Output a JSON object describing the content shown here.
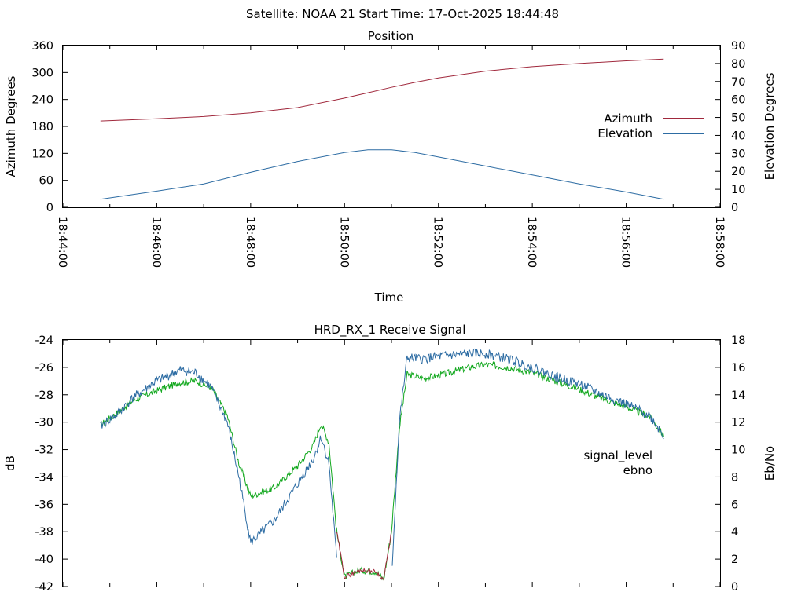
{
  "header": "Satellite: NOAA 21    Start Time: 17-Oct-2025 18:44:48",
  "colors": {
    "azimuth": "#a0283c",
    "elevation": "#2d6ca3",
    "ebno": "#2d6ca3",
    "signal_level": "#000000",
    "signal_level_drawn": "#12a81e",
    "signal_level_low": "#a0283c"
  },
  "chart_data": [
    {
      "type": "line",
      "title": "Position",
      "xlabel": "Time",
      "ylabel_left": "Azimuth Degrees",
      "ylabel_right": "Elevation Degrees",
      "xlim": [
        "18:44:00",
        "18:58:00"
      ],
      "x_ticks": [
        "18:44:00",
        "18:46:00",
        "18:48:00",
        "18:50:00",
        "18:52:00",
        "18:54:00",
        "18:56:00",
        "18:58:00"
      ],
      "ylim_left": [
        0,
        360
      ],
      "y_ticks_left": [
        "0",
        "60",
        "120",
        "180",
        "240",
        "300",
        "360"
      ],
      "ylim_right": [
        0,
        90
      ],
      "y_ticks_right": [
        "0",
        "10",
        "20",
        "30",
        "40",
        "50",
        "60",
        "70",
        "80",
        "90"
      ],
      "legend": "right",
      "grid": false,
      "series": [
        {
          "name": "Azimuth",
          "axis": "left",
          "x": [
            "18:44:48",
            "18:46:00",
            "18:47:00",
            "18:48:00",
            "18:49:00",
            "18:50:00",
            "18:50:30",
            "18:51:00",
            "18:51:30",
            "18:52:00",
            "18:53:00",
            "18:54:00",
            "18:55:00",
            "18:56:00",
            "18:56:48"
          ],
          "values": [
            192,
            197,
            202,
            210,
            222,
            243,
            255,
            267,
            278,
            288,
            303,
            313,
            320,
            326,
            330
          ]
        },
        {
          "name": "Elevation",
          "axis": "right",
          "x": [
            "18:44:48",
            "18:46:00",
            "18:47:00",
            "18:48:00",
            "18:49:00",
            "18:50:00",
            "18:50:30",
            "18:51:00",
            "18:51:30",
            "18:52:00",
            "18:53:00",
            "18:54:00",
            "18:55:00",
            "18:56:00",
            "18:56:48"
          ],
          "values": [
            4.5,
            9,
            13,
            19.5,
            25.5,
            30.5,
            32,
            32,
            30.5,
            28,
            23,
            18,
            13,
            8.5,
            4.5
          ]
        }
      ]
    },
    {
      "type": "line",
      "title": "HRD_RX_1 Receive Signal",
      "xlabel": "",
      "ylabel_left": "dB",
      "ylabel_right": "Eb/No",
      "xlim": [
        "18:44:00",
        "18:58:00"
      ],
      "ylim_left": [
        -42,
        -24
      ],
      "y_ticks_left": [
        "-42",
        "-40",
        "-38",
        "-36",
        "-34",
        "-32",
        "-30",
        "-28",
        "-26",
        "-24"
      ],
      "ylim_right": [
        0,
        18
      ],
      "y_ticks_right": [
        "0",
        "2",
        "4",
        "6",
        "8",
        "10",
        "12",
        "14",
        "16",
        "18"
      ],
      "legend": "right",
      "grid": false,
      "series": [
        {
          "name": "signal_level",
          "axis": "left",
          "x": [
            "18:44:48",
            "18:45:10",
            "18:45:30",
            "18:46:00",
            "18:46:30",
            "18:46:50",
            "18:47:10",
            "18:47:30",
            "18:47:45",
            "18:48:00",
            "18:48:30",
            "18:49:00",
            "18:49:20",
            "18:49:30",
            "18:49:40",
            "18:49:50",
            "18:50:00",
            "18:50:20",
            "18:50:40",
            "18:50:50",
            "18:51:00",
            "18:51:10",
            "18:51:20",
            "18:51:40",
            "18:52:00",
            "18:52:40",
            "18:53:00",
            "18:53:30",
            "18:54:00",
            "18:54:30",
            "18:55:00",
            "18:55:30",
            "18:56:00",
            "18:56:30",
            "18:56:48"
          ],
          "values": [
            -30.2,
            -29.3,
            -28.4,
            -27.7,
            -27.1,
            -27.0,
            -27.5,
            -29.5,
            -33.0,
            -35.4,
            -34.8,
            -33.2,
            -31.7,
            -30.1,
            -31.5,
            -38.0,
            -41.3,
            -40.8,
            -40.9,
            -41.5,
            -38.0,
            -30.5,
            -26.5,
            -26.8,
            -26.6,
            -26.0,
            -25.8,
            -26.0,
            -26.4,
            -27.0,
            -27.6,
            -28.3,
            -28.9,
            -29.6,
            -31.0
          ]
        },
        {
          "name": "ebno",
          "axis": "right",
          "x": [
            "18:44:48",
            "18:45:10",
            "18:45:30",
            "18:46:00",
            "18:46:30",
            "18:46:50",
            "18:47:10",
            "18:47:30",
            "18:47:45",
            "18:48:00",
            "18:48:30",
            "18:49:00",
            "18:49:20",
            "18:49:30",
            "18:49:40",
            "18:49:50",
            "18:50:00",
            "18:50:20",
            "18:50:40",
            "18:50:50",
            "18:51:00",
            "18:51:10",
            "18:51:20",
            "18:51:40",
            "18:52:00",
            "18:52:40",
            "18:53:00",
            "18:53:30",
            "18:54:00",
            "18:54:30",
            "18:55:00",
            "18:55:30",
            "18:56:00",
            "18:56:30",
            "18:56:48"
          ],
          "values": [
            11.7,
            12.6,
            13.8,
            15.0,
            15.8,
            15.6,
            14.5,
            12.0,
            8.0,
            3.2,
            4.8,
            7.5,
            9.3,
            10.9,
            9.0,
            2.0,
            null,
            null,
            null,
            null,
            0.5,
            12.0,
            16.7,
            16.6,
            16.8,
            17.0,
            17.0,
            16.6,
            16.0,
            15.3,
            14.8,
            14.0,
            13.3,
            12.5,
            11.0
          ]
        }
      ]
    }
  ]
}
